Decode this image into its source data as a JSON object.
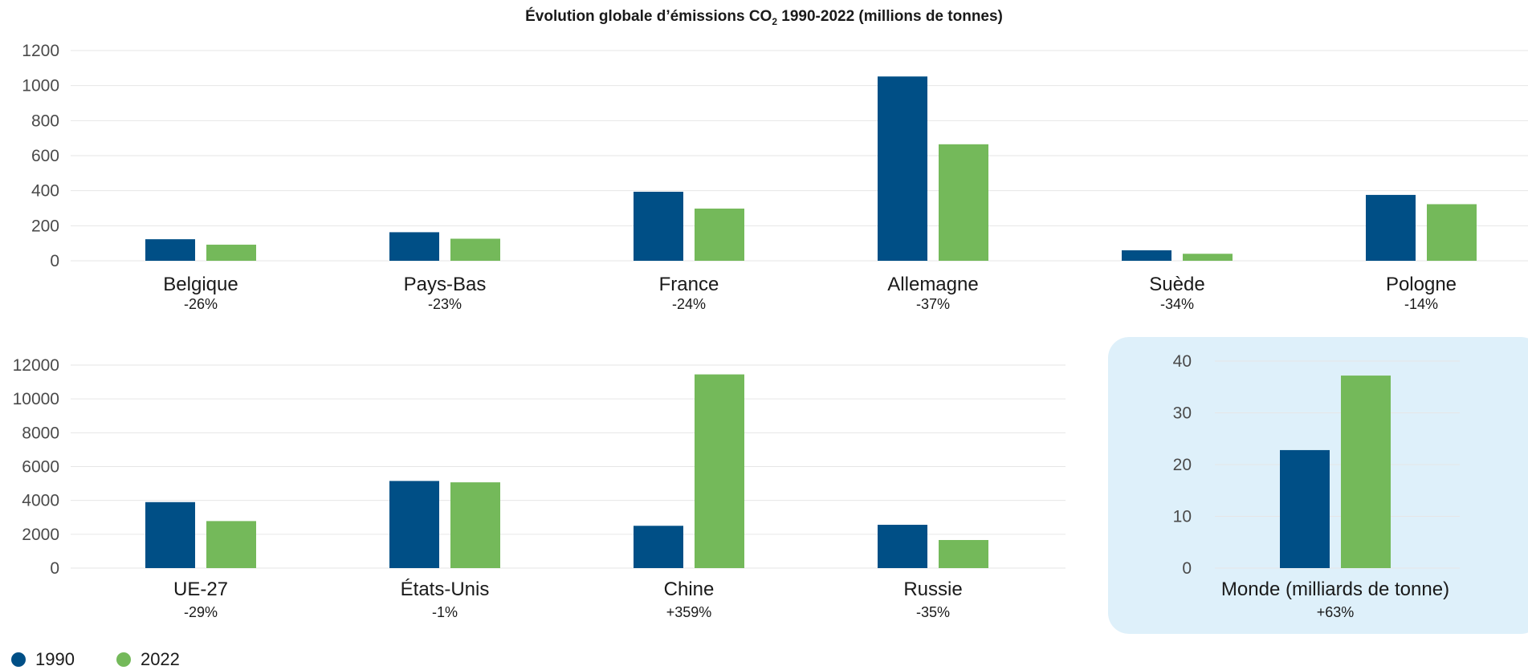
{
  "title_main": "Évolution globale d’émissions CO",
  "title_sub": "2",
  "title_rest": " 1990-2022 (millions de tonnes)",
  "colors": {
    "y1990": "#004f86",
    "y2022": "#74b95a",
    "panel": "#def0fa",
    "grid": "#e6e6e6"
  },
  "legend": [
    {
      "label": "1990",
      "color": "#004f86"
    },
    {
      "label": "2022",
      "color": "#74b95a"
    }
  ],
  "chart_data": [
    {
      "type": "bar",
      "series": [
        {
          "name": "1990"
        },
        {
          "name": "2022"
        }
      ],
      "ylim": [
        0,
        1200
      ],
      "yticks": [
        "0",
        "200",
        "400",
        "600",
        "800",
        "1000",
        "1200"
      ],
      "categories": [
        {
          "label": "Belgique",
          "change": "-26%",
          "values": [
            123,
            92
          ]
        },
        {
          "label": "Pays-Bas",
          "change": "-23%",
          "values": [
            163,
            126
          ]
        },
        {
          "label": "France",
          "change": "-24%",
          "values": [
            394,
            298
          ]
        },
        {
          "label": "Allemagne",
          "change": "-37%",
          "values": [
            1052,
            665
          ]
        },
        {
          "label": "Suède",
          "change": "-34%",
          "values": [
            60,
            40
          ]
        },
        {
          "label": "Pologne",
          "change": "-14%",
          "values": [
            376,
            323
          ]
        }
      ]
    },
    {
      "type": "bar",
      "series": [
        {
          "name": "1990"
        },
        {
          "name": "2022"
        }
      ],
      "ylim": [
        0,
        12000
      ],
      "yticks": [
        "0",
        "2000",
        "4000",
        "6000",
        "8000",
        "10000",
        "12000"
      ],
      "categories": [
        {
          "label": "UE-27",
          "change": "-29%",
          "values": [
            3900,
            2780
          ]
        },
        {
          "label": "États-Unis",
          "change": "-1%",
          "values": [
            5150,
            5070
          ]
        },
        {
          "label": "Chine",
          "change": "+359%",
          "values": [
            2500,
            11450
          ]
        },
        {
          "label": "Russie",
          "change": "-35%",
          "values": [
            2560,
            1660
          ]
        }
      ]
    },
    {
      "type": "bar",
      "series": [
        {
          "name": "1990"
        },
        {
          "name": "2022"
        }
      ],
      "ylim": [
        0,
        40
      ],
      "yticks": [
        "0",
        "10",
        "20",
        "30",
        "40"
      ],
      "categories": [
        {
          "label": "Monde (milliards de tonne)",
          "change": "+63%",
          "values": [
            22.8,
            37.2
          ]
        }
      ]
    }
  ]
}
